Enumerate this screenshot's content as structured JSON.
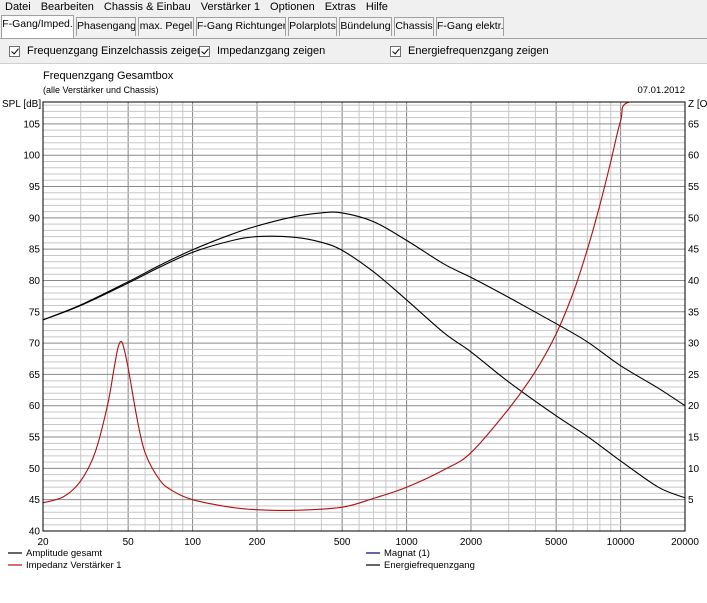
{
  "menu": [
    "Datei",
    "Bearbeiten",
    "Chassis & Einbau",
    "Verstärker 1",
    "Optionen",
    "Extras",
    "Hilfe"
  ],
  "tabs": [
    {
      "label": "F-Gang/Imped.",
      "active": true
    },
    {
      "label": "Phasengang",
      "active": false
    },
    {
      "label": "max. Pegel",
      "active": false
    },
    {
      "label": "F-Gang Richtungen",
      "active": false
    },
    {
      "label": "Polarplots",
      "active": false
    },
    {
      "label": "Bündelung",
      "active": false
    },
    {
      "label": "Chassis",
      "active": false
    },
    {
      "label": "F-Gang elektr.",
      "active": false
    }
  ],
  "options": [
    {
      "label": "Frequenzgang Einzelchassis zeigen",
      "checked": true
    },
    {
      "label": "Impedanzgang zeigen",
      "checked": true
    },
    {
      "label": "Energiefrequenzgang zeigen",
      "checked": true
    }
  ],
  "chart_data": {
    "type": "line",
    "title": "Frequenzgang Gesamtbox",
    "subtitle": "(alle Verstärker und Chassis)",
    "date": "07.01.2012",
    "ylabel": "SPL [dB]",
    "y2label": "Z [O",
    "xscale": "log",
    "xlim": [
      20,
      20000
    ],
    "ylim": [
      40,
      108.5
    ],
    "y2lim": [
      0,
      68.5
    ],
    "xticks": [
      20,
      50,
      100,
      200,
      500,
      1000,
      2000,
      5000,
      10000,
      20000
    ],
    "xtick_labels": [
      "20",
      "50",
      "100",
      "200",
      "500",
      "1000",
      "2000",
      "5000",
      "10000",
      "20000"
    ],
    "yticks": [
      40,
      45,
      50,
      55,
      60,
      65,
      70,
      75,
      80,
      85,
      90,
      95,
      100,
      105
    ],
    "y2ticks": [
      5,
      10,
      15,
      20,
      25,
      30,
      35,
      40,
      45,
      50,
      55,
      60,
      65
    ],
    "grid": true,
    "legend": [
      {
        "label": "Amplitude gesamt",
        "color": "#000000",
        "position": "bottom-left"
      },
      {
        "label": "Impedanz Verstärker 1",
        "color": "#b01010",
        "position": "bottom-left"
      },
      {
        "label": "Magnat (1)",
        "color": "#000060",
        "position": "bottom-right"
      },
      {
        "label": "Energiefrequenzgang",
        "color": "#000000",
        "position": "bottom-right"
      }
    ],
    "series": [
      {
        "name": "Amplitude gesamt",
        "axis": "left",
        "color": "#000000",
        "x": [
          20,
          30,
          50,
          70,
          100,
          150,
          200,
          300,
          400,
          500,
          700,
          1000,
          1500,
          2000,
          3000,
          5000,
          7000,
          10000,
          15000,
          20000
        ],
        "y": [
          73.7,
          76.1,
          79.8,
          82.4,
          84.9,
          87.3,
          88.7,
          90.2,
          90.8,
          90.8,
          89.4,
          86.4,
          82.6,
          80.5,
          77.3,
          73.1,
          70.2,
          66.4,
          62.8,
          60.0
        ]
      },
      {
        "name": "Energiefrequenzgang",
        "axis": "left",
        "color": "#000000",
        "x": [
          20,
          30,
          50,
          70,
          100,
          150,
          200,
          300,
          400,
          500,
          700,
          1000,
          1500,
          2000,
          3000,
          5000,
          7000,
          10000,
          15000,
          20000
        ],
        "y": [
          73.7,
          76.0,
          79.6,
          82.1,
          84.5,
          86.3,
          87.0,
          86.9,
          86.1,
          84.8,
          81.4,
          76.9,
          71.6,
          68.6,
          63.8,
          58.4,
          55.1,
          51.2,
          47.0,
          45.3
        ]
      },
      {
        "name": "Impedanz Verstärker 1",
        "axis": "right",
        "color": "#b01010",
        "x": [
          20,
          25,
          30,
          35,
          40,
          43,
          45,
          47,
          50,
          55,
          60,
          70,
          80,
          100,
          150,
          200,
          300,
          500,
          700,
          1000,
          1500,
          2000,
          3000,
          4000,
          5000,
          6000,
          7000,
          8000,
          9000,
          10000,
          11000,
          20000
        ],
        "y": [
          4.5,
          5.5,
          8.0,
          12.5,
          20.0,
          26.0,
          29.5,
          30.0,
          26.0,
          18.0,
          12.5,
          8.2,
          6.5,
          5.0,
          3.8,
          3.4,
          3.3,
          3.8,
          5.2,
          7.0,
          9.8,
          12.5,
          19.5,
          25.5,
          31.5,
          38.0,
          45.0,
          52.0,
          59.0,
          65.5,
          68.5,
          68.5
        ]
      }
    ]
  }
}
